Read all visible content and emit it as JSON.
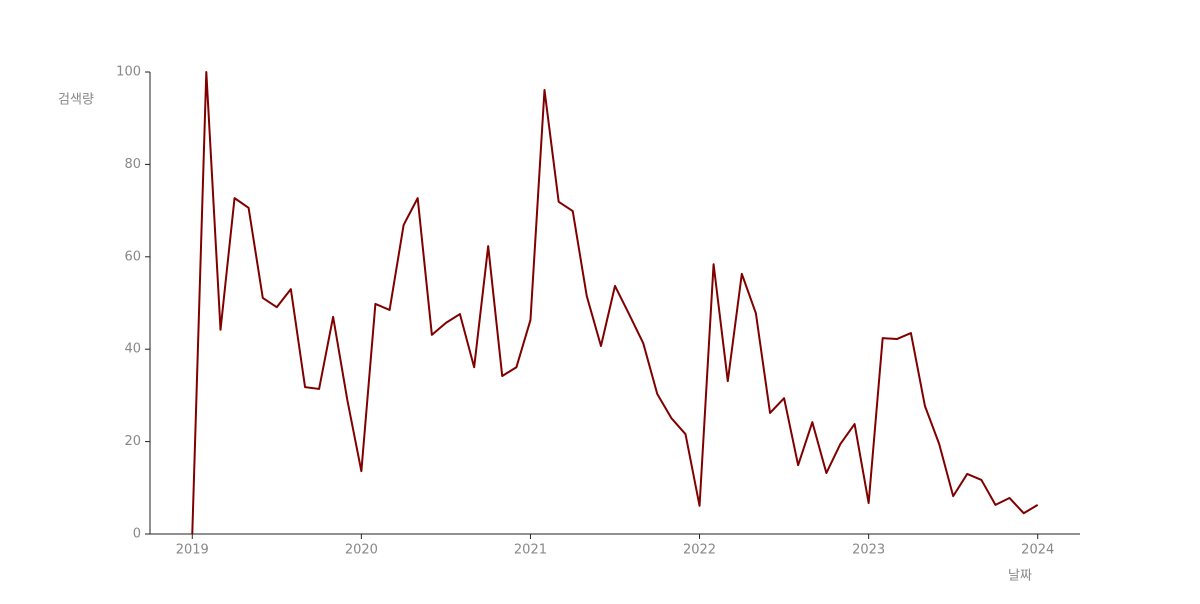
{
  "chart_data": {
    "type": "line",
    "x_label": "날짜",
    "y_label": "검색량",
    "x": [
      2019,
      2019.083,
      2019.167,
      2019.25,
      2019.333,
      2019.417,
      2019.5,
      2019.583,
      2019.667,
      2019.75,
      2019.833,
      2019.917,
      2020,
      2020.083,
      2020.167,
      2020.25,
      2020.333,
      2020.417,
      2020.5,
      2020.583,
      2020.667,
      2020.75,
      2020.833,
      2020.917,
      2021,
      2021.083,
      2021.167,
      2021.25,
      2021.333,
      2021.417,
      2021.5,
      2021.583,
      2021.667,
      2021.75,
      2021.833,
      2021.917,
      2022,
      2022.083,
      2022.167,
      2022.25,
      2022.333,
      2022.417,
      2022.5,
      2022.583,
      2022.667,
      2022.75,
      2022.833,
      2022.917,
      2023,
      2023.083,
      2023.167,
      2023.25,
      2023.333,
      2023.417,
      2023.5,
      2023.583,
      2023.667,
      2023.75,
      2023.833,
      2023.917,
      2024
    ],
    "series": [
      {
        "color": "#800000",
        "values": [
          0,
          100,
          44.2,
          72.7,
          70.6,
          51.1,
          49.1,
          53.0,
          31.8,
          31.4,
          47.0,
          29.0,
          13.6,
          49.8,
          48.5,
          66.9,
          72.7,
          43.1,
          45.7,
          47.6,
          36.1,
          62.3,
          34.2,
          36.1,
          46.3,
          96.1,
          71.9,
          69.9,
          51.5,
          40.7,
          53.7,
          47.6,
          41.3,
          30.3,
          25.1,
          21.6,
          6.1,
          58.4,
          33.1,
          56.3,
          47.8,
          26.2,
          29.4,
          14.9,
          24.2,
          13.2,
          19.5,
          23.8,
          6.7,
          42.4,
          42.2,
          43.5,
          27.7,
          19.5,
          8.2,
          13.0,
          11.7,
          6.3,
          7.8,
          4.5,
          6.3
        ]
      }
    ],
    "xlim": [
      2018.75,
      2024.25
    ],
    "xticks": [
      2019,
      2020,
      2021,
      2022,
      2023,
      2024
    ],
    "ylim": [
      0,
      100
    ],
    "yticks": [
      0,
      20,
      40,
      60,
      80,
      100
    ]
  }
}
